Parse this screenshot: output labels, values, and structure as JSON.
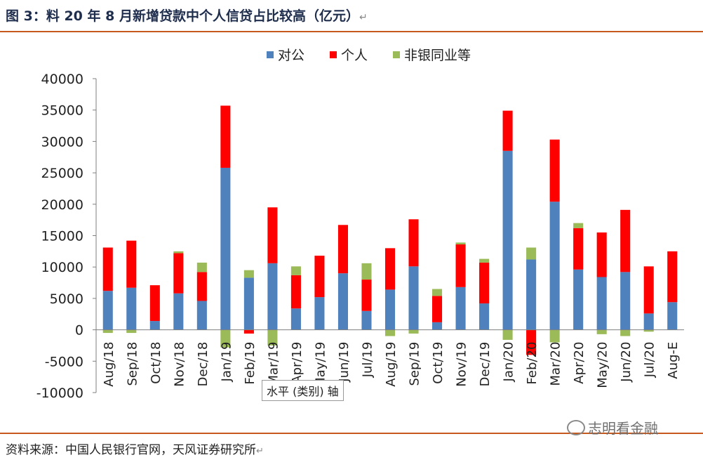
{
  "figure": {
    "title": "图 3：料 20 年 8 月新增贷款中个人信贷占比较高（亿元）",
    "return_mark": "↵",
    "source": "资料来源：中国人民银行官网，天风证券研究所",
    "watermark": "志明看金融",
    "axis_tooltip": "水平 (类别) 轴"
  },
  "colors": {
    "series": [
      "#4f81bd",
      "#ff0000",
      "#9bbb59"
    ],
    "rule": "#c65a1e"
  },
  "chart_data": {
    "type": "bar",
    "stacked": true,
    "title": "",
    "xlabel": "",
    "ylabel": "",
    "ylim": [
      -10000,
      40000
    ],
    "yticks": [
      40000,
      35000,
      30000,
      25000,
      20000,
      15000,
      10000,
      5000,
      0,
      -5000,
      -10000
    ],
    "legend_position": "top-center",
    "grid": false,
    "categories": [
      "Aug/18",
      "Sep/18",
      "Oct/18",
      "Nov/18",
      "Dec/18",
      "Jan/19",
      "Feb/19",
      "Mar/19",
      "Apr/19",
      "May/19",
      "Jun/19",
      "Jul/19",
      "Aug/19",
      "Sep/19",
      "Oct/19",
      "Nov/19",
      "Dec/19",
      "Jan/20",
      "Feb/20",
      "Mar/20",
      "Apr/20",
      "May/20",
      "Jun/20",
      "Jul/20",
      "Aug-E"
    ],
    "series": [
      {
        "name": "对公",
        "values": [
          6200,
          6700,
          1400,
          5800,
          4600,
          25800,
          8300,
          10600,
          3400,
          5200,
          9000,
          3000,
          6400,
          10100,
          1200,
          6800,
          4200,
          28500,
          11200,
          20400,
          9600,
          8400,
          9200,
          2600,
          4400
        ]
      },
      {
        "name": "个人",
        "values": [
          6900,
          7500,
          5700,
          6400,
          4600,
          9900,
          -600,
          8900,
          5300,
          6600,
          7700,
          5000,
          6600,
          7500,
          4200,
          6800,
          6500,
          6400,
          -4000,
          9900,
          6600,
          7100,
          9900,
          7500,
          8100
        ]
      },
      {
        "name": "非银同业等",
        "values": [
          -500,
          -500,
          0,
          300,
          1500,
          -2800,
          1200,
          -2500,
          1400,
          0,
          0,
          2600,
          -1000,
          -600,
          1100,
          300,
          600,
          -1600,
          1900,
          -2000,
          800,
          -700,
          -1000,
          -300,
          0
        ]
      }
    ]
  }
}
